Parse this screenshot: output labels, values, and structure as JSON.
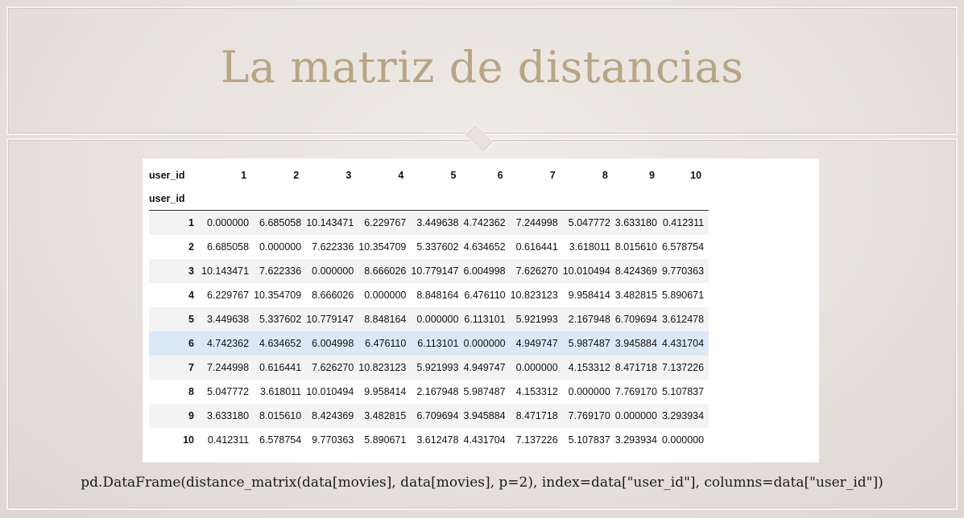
{
  "slide": {
    "title": "La matriz de distancias",
    "code": "pd.DataFrame(distance_matrix(data[movies], data[movies], p=2), index=data[\"user_id\"], columns=data[\"user_id\"])"
  },
  "table": {
    "columns_name": "user_id",
    "index_name": "user_id",
    "columns": [
      "1",
      "2",
      "3",
      "4",
      "5",
      "6",
      "7",
      "8",
      "9",
      "10"
    ],
    "highlighted_row": "6",
    "rows": [
      {
        "index": "1",
        "values": [
          "0.000000",
          "6.685058",
          "10.143471",
          "6.229767",
          "3.449638",
          "4.742362",
          "7.244998",
          "5.047772",
          "3.633180",
          "0.412311"
        ]
      },
      {
        "index": "2",
        "values": [
          "6.685058",
          "0.000000",
          "7.622336",
          "10.354709",
          "5.337602",
          "4.634652",
          "0.616441",
          "3.618011",
          "8.015610",
          "6.578754"
        ]
      },
      {
        "index": "3",
        "values": [
          "10.143471",
          "7.622336",
          "0.000000",
          "8.666026",
          "10.779147",
          "6.004998",
          "7.626270",
          "10.010494",
          "8.424369",
          "9.770363"
        ]
      },
      {
        "index": "4",
        "values": [
          "6.229767",
          "10.354709",
          "8.666026",
          "0.000000",
          "8.848164",
          "6.476110",
          "10.823123",
          "9.958414",
          "3.482815",
          "5.890671"
        ]
      },
      {
        "index": "5",
        "values": [
          "3.449638",
          "5.337602",
          "10.779147",
          "8.848164",
          "0.000000",
          "6.113101",
          "5.921993",
          "2.167948",
          "6.709694",
          "3.612478"
        ]
      },
      {
        "index": "6",
        "values": [
          "4.742362",
          "4.634652",
          "6.004998",
          "6.476110",
          "6.113101",
          "0.000000",
          "4.949747",
          "5.987487",
          "3.945884",
          "4.431704"
        ]
      },
      {
        "index": "7",
        "values": [
          "7.244998",
          "0.616441",
          "7.626270",
          "10.823123",
          "5.921993",
          "4.949747",
          "0.000000",
          "4.153312",
          "8.471718",
          "7.137226"
        ]
      },
      {
        "index": "8",
        "values": [
          "5.047772",
          "3.618011",
          "10.010494",
          "9.958414",
          "2.167948",
          "5.987487",
          "4.153312",
          "0.000000",
          "7.769170",
          "5.107837"
        ]
      },
      {
        "index": "9",
        "values": [
          "3.633180",
          "8.015610",
          "8.424369",
          "3.482815",
          "6.709694",
          "3.945884",
          "8.471718",
          "7.769170",
          "0.000000",
          "3.293934"
        ]
      },
      {
        "index": "10",
        "values": [
          "0.412311",
          "6.578754",
          "9.770363",
          "5.890671",
          "3.612478",
          "4.431704",
          "7.137226",
          "5.107837",
          "3.293934",
          "0.000000"
        ]
      }
    ]
  }
}
